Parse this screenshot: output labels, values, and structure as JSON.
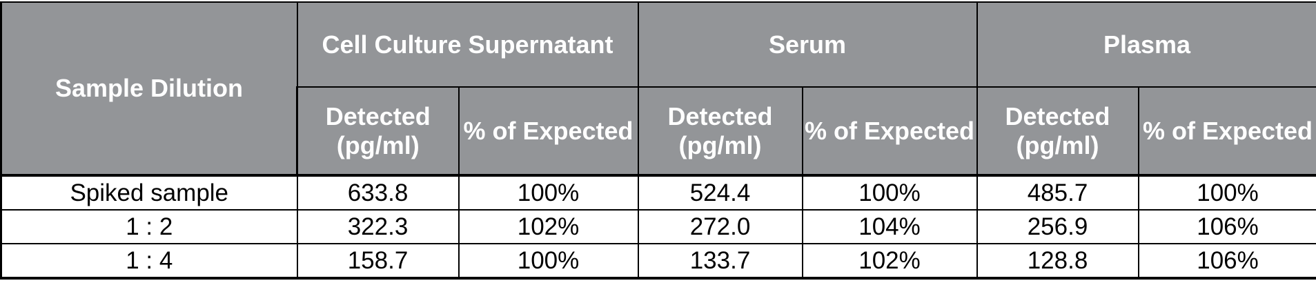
{
  "header": {
    "row_label": "Sample Dilution",
    "groups": [
      "Cell Culture Supernatant",
      "Serum",
      "Plasma"
    ],
    "subcolumns": [
      "Detected (pg/ml)",
      "% of Expected"
    ]
  },
  "rows": [
    {
      "label": "Spiked sample",
      "values": [
        "633.8",
        "100%",
        "524.4",
        "100%",
        "485.7",
        "100%"
      ]
    },
    {
      "label": "1 : 2",
      "values": [
        "322.3",
        "102%",
        "272.0",
        "104%",
        "256.9",
        "106%"
      ]
    },
    {
      "label": "1 : 4",
      "values": [
        "158.7",
        "100%",
        "133.7",
        "102%",
        "128.8",
        "106%"
      ]
    }
  ],
  "colors": {
    "header_bg": "#939598",
    "header_text": "#ffffff"
  }
}
